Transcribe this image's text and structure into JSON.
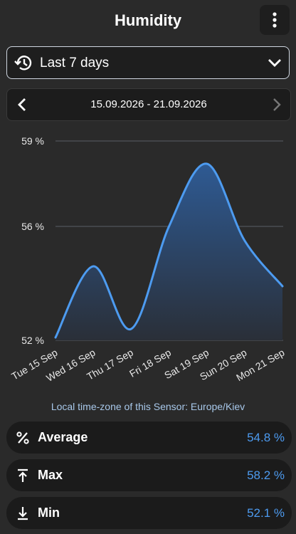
{
  "header": {
    "title": "Humidity"
  },
  "period_selector": {
    "label": "Last 7 days"
  },
  "date_range": {
    "label": "15.09.2026 - 21.09.2026"
  },
  "chart_data": {
    "type": "line",
    "categories": [
      "Tue 15 Sep",
      "Wed 16 Sep",
      "Thu 17 Sep",
      "Fri 18 Sep",
      "Sat 19 Sep",
      "Sun 20 Sep",
      "Mon 21 Sep"
    ],
    "series": [
      {
        "name": "Humidity",
        "color": "#4d9bf0",
        "values": [
          52.1,
          54.6,
          52.4,
          56.0,
          58.2,
          55.5,
          53.9
        ]
      }
    ],
    "ylim": [
      52,
      59
    ],
    "yticks": [
      {
        "value": 52,
        "label": "52 %"
      },
      {
        "value": 56,
        "label": "56 %"
      },
      {
        "value": 59,
        "label": "59 %"
      }
    ],
    "grid": true
  },
  "timezone_note": "Local time-zone of this Sensor: Europe/Kiev",
  "stats": [
    {
      "label": "Average",
      "value": "54.8 %"
    },
    {
      "label": "Max",
      "value": "58.2 %"
    },
    {
      "label": "Min",
      "value": "52.1 %"
    }
  ]
}
